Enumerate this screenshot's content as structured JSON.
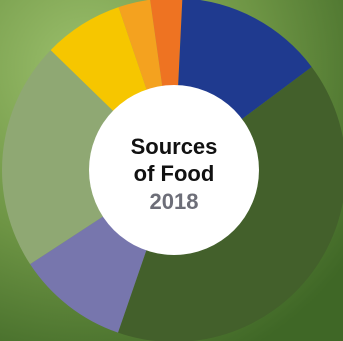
{
  "chart_data": {
    "type": "pie",
    "title_line1": "Sources",
    "title_line2": "of Food",
    "year": "2018",
    "slices": [
      {
        "value": 3.0,
        "color": "#ee7322"
      },
      {
        "value": 14.0,
        "color": "#1f3a8f"
      },
      {
        "value": 40.5,
        "color": "#43602b"
      },
      {
        "value": 10.5,
        "color": "#7776ad"
      },
      {
        "value": 21.5,
        "color": "#8fa873"
      },
      {
        "value": 7.5,
        "color": "#f6c600"
      },
      {
        "value": 3.0,
        "color": "#f4a21f"
      }
    ]
  },
  "colors": {
    "title": "#111111",
    "year": "#6d6e78",
    "hole": "#ffffff",
    "background_dark": "#416a2a",
    "background_light": "#8fb463"
  }
}
